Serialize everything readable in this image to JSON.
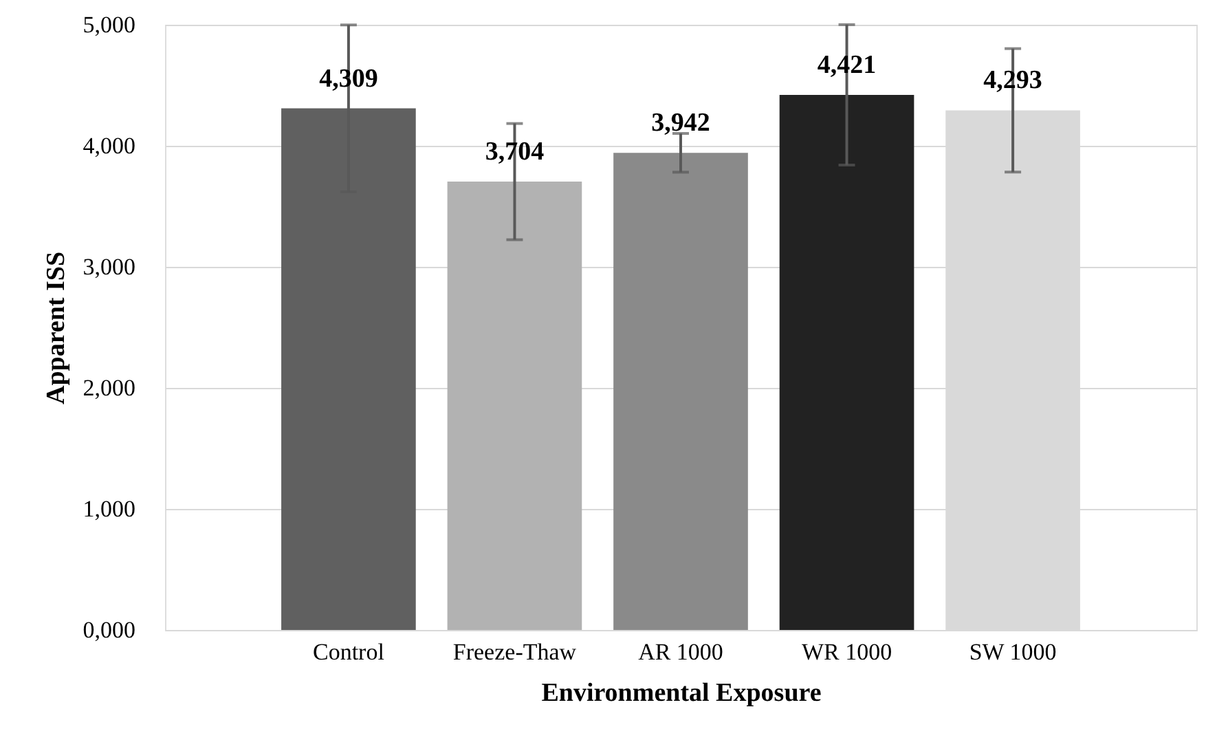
{
  "chart_data": {
    "type": "bar",
    "xlabel": "Environmental Exposure",
    "ylabel": "Apparent ISS",
    "categories": [
      "Control",
      "Freeze-Thaw",
      "AR 1000",
      "WR 1000",
      "SW 1000"
    ],
    "values": [
      4309,
      3704,
      3942,
      4421,
      4293
    ],
    "value_labels": [
      "4,309",
      "3,704",
      "3,942",
      "4,421",
      "4,293"
    ],
    "colors": [
      "#606060",
      "#b2b2b2",
      "#8a8a8a",
      "#222222",
      "#d9d9d9"
    ],
    "errors": [
      690,
      480,
      160,
      580,
      510
    ],
    "ylim": [
      0,
      5000
    ],
    "yticks": [
      {
        "value": 0,
        "label": "0,000"
      },
      {
        "value": 1000,
        "label": "1,000"
      },
      {
        "value": 2000,
        "label": "2,000"
      },
      {
        "value": 3000,
        "label": "3,000"
      },
      {
        "value": 4000,
        "label": "4,000"
      },
      {
        "value": 5000,
        "label": "5,000"
      }
    ],
    "grid": "y"
  }
}
